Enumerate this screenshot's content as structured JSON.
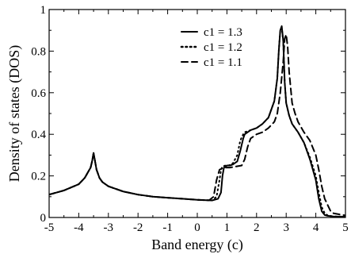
{
  "chart_data": {
    "type": "line",
    "title": "",
    "xlabel": "Band energy (c)",
    "ylabel": "Density of states (DOS)",
    "xlim": [
      -5,
      5
    ],
    "ylim": [
      0,
      1
    ],
    "x_ticks": [
      -5,
      -4,
      -3,
      -2,
      -1,
      0,
      1,
      2,
      3,
      4,
      5
    ],
    "x_tick_labels": [
      "-5",
      "-4",
      "-3",
      "-2",
      "-1",
      "0",
      "1",
      "2",
      "3",
      "4",
      "5"
    ],
    "y_ticks": [
      0,
      0.2,
      0.4,
      0.6,
      0.8,
      1
    ],
    "y_tick_labels": [
      "0",
      "0.2",
      "0.4",
      "0.6",
      "0.8",
      "1"
    ],
    "grid": false,
    "legend_position": "top-right",
    "series": [
      {
        "name": "c1 = 1.3",
        "style": "solid",
        "color": "#000000",
        "x": [
          -5,
          -4.5,
          -4,
          -3.8,
          -3.6,
          -3.55,
          -3.5,
          -3.45,
          -3.4,
          -3.3,
          -3.2,
          -3.0,
          -2.5,
          -2.0,
          -1.5,
          -1.0,
          -0.5,
          0,
          0.5,
          0.7,
          0.8,
          0.85,
          0.9,
          1.0,
          1.1,
          1.2,
          1.35,
          1.45,
          1.55,
          1.6,
          1.8,
          2.0,
          2.2,
          2.4,
          2.5,
          2.6,
          2.7,
          2.75,
          2.8,
          2.85,
          2.9,
          2.95,
          3.0,
          3.1,
          3.2,
          3.4,
          3.6,
          3.8,
          4.0,
          4.1,
          4.2,
          4.3,
          4.4,
          4.6,
          5.0
        ],
        "y": [
          0.11,
          0.13,
          0.16,
          0.19,
          0.24,
          0.27,
          0.31,
          0.27,
          0.23,
          0.19,
          0.17,
          0.15,
          0.125,
          0.11,
          0.1,
          0.095,
          0.09,
          0.085,
          0.082,
          0.09,
          0.12,
          0.2,
          0.24,
          0.25,
          0.25,
          0.255,
          0.27,
          0.32,
          0.38,
          0.4,
          0.42,
          0.43,
          0.45,
          0.48,
          0.52,
          0.56,
          0.67,
          0.8,
          0.9,
          0.92,
          0.85,
          0.65,
          0.55,
          0.49,
          0.45,
          0.41,
          0.36,
          0.28,
          0.18,
          0.09,
          0.03,
          0.012,
          0.008,
          0.005,
          0.004
        ]
      },
      {
        "name": "c1 = 1.2",
        "style": "dotted",
        "color": "#000000",
        "x": [
          -5,
          -4.5,
          -4,
          -3.8,
          -3.6,
          -3.55,
          -3.5,
          -3.45,
          -3.4,
          -3.3,
          -3.2,
          -3.0,
          -2.5,
          -2.0,
          -1.5,
          -1.0,
          -0.5,
          0,
          0.5,
          0.65,
          0.75,
          0.8,
          0.85,
          0.95,
          1.05,
          1.2,
          1.35,
          1.45,
          1.55,
          1.6,
          1.8,
          2.0,
          2.2,
          2.4,
          2.5,
          2.6,
          2.7,
          2.75,
          2.8,
          2.85,
          2.9,
          2.95,
          3.0,
          3.1,
          3.2,
          3.4,
          3.6,
          3.8,
          4.0,
          4.1,
          4.2,
          4.3,
          4.4,
          4.6,
          5.0
        ],
        "y": [
          0.11,
          0.13,
          0.16,
          0.19,
          0.24,
          0.27,
          0.31,
          0.27,
          0.23,
          0.19,
          0.17,
          0.15,
          0.125,
          0.11,
          0.1,
          0.095,
          0.09,
          0.085,
          0.082,
          0.1,
          0.18,
          0.23,
          0.245,
          0.25,
          0.25,
          0.26,
          0.3,
          0.37,
          0.4,
          0.41,
          0.42,
          0.43,
          0.45,
          0.48,
          0.52,
          0.56,
          0.67,
          0.8,
          0.9,
          0.91,
          0.85,
          0.65,
          0.55,
          0.49,
          0.45,
          0.41,
          0.36,
          0.29,
          0.2,
          0.12,
          0.05,
          0.02,
          0.01,
          0.005,
          0.004
        ]
      },
      {
        "name": "c1 = 1.1",
        "style": "dashed",
        "color": "#000000",
        "x": [
          -5,
          -4.5,
          -4,
          -3.8,
          -3.6,
          -3.55,
          -3.5,
          -3.45,
          -3.4,
          -3.3,
          -3.2,
          -3.0,
          -2.5,
          -2.0,
          -1.5,
          -1.0,
          -0.5,
          0,
          0.4,
          0.55,
          0.65,
          0.75,
          0.9,
          1.1,
          1.3,
          1.5,
          1.6,
          1.7,
          1.8,
          2.0,
          2.2,
          2.4,
          2.6,
          2.7,
          2.8,
          2.9,
          2.95,
          3.0,
          3.05,
          3.1,
          3.2,
          3.3,
          3.4,
          3.6,
          3.8,
          4.0,
          4.1,
          4.2,
          4.3,
          4.4,
          4.5,
          4.6,
          5.0
        ],
        "y": [
          0.11,
          0.13,
          0.16,
          0.19,
          0.24,
          0.27,
          0.31,
          0.27,
          0.23,
          0.19,
          0.17,
          0.15,
          0.125,
          0.11,
          0.1,
          0.095,
          0.09,
          0.085,
          0.083,
          0.1,
          0.18,
          0.23,
          0.24,
          0.24,
          0.245,
          0.25,
          0.28,
          0.34,
          0.38,
          0.4,
          0.41,
          0.43,
          0.46,
          0.5,
          0.6,
          0.75,
          0.86,
          0.88,
          0.82,
          0.7,
          0.55,
          0.5,
          0.46,
          0.41,
          0.37,
          0.3,
          0.23,
          0.15,
          0.09,
          0.06,
          0.03,
          0.02,
          0.01
        ]
      }
    ]
  }
}
